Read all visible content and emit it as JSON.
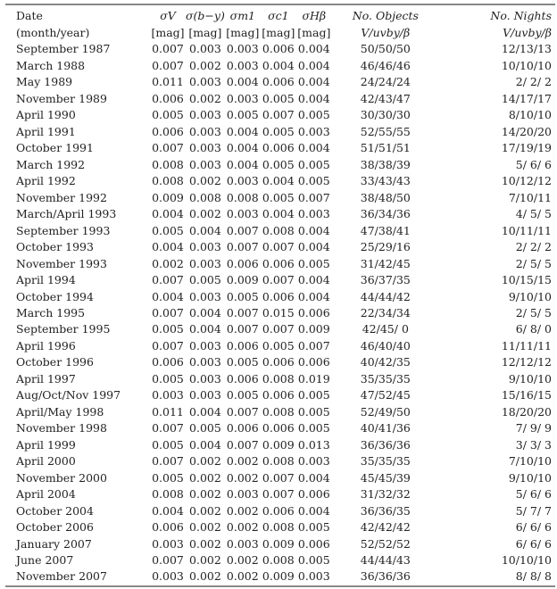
{
  "table": {
    "header_row1": [
      "Date",
      "σV",
      "σ(b−y)",
      "σm1",
      "σc1",
      "σHβ",
      "No. Objects",
      "No. Nights"
    ],
    "header_row2": [
      "(month/year)",
      "[mag]",
      "[mag]",
      "[mag]",
      "[mag]",
      "[mag]",
      "V/uvby/β",
      "V/uvby/β"
    ],
    "rows": [
      [
        "September 1987",
        "0.007",
        "0.003",
        "0.003",
        "0.006",
        "0.004",
        "50/50/50",
        "12/13/13"
      ],
      [
        "March 1988",
        "0.007",
        "0.002",
        "0.003",
        "0.004",
        "0.004",
        "46/46/46",
        "10/10/10"
      ],
      [
        "May 1989",
        "0.011",
        "0.003",
        "0.004",
        "0.006",
        "0.004",
        "24/24/24",
        "2/ 2/ 2"
      ],
      [
        "November 1989",
        "0.006",
        "0.002",
        "0.003",
        "0.005",
        "0.004",
        "42/43/47",
        "14/17/17"
      ],
      [
        "April 1990",
        "0.005",
        "0.003",
        "0.005",
        "0.007",
        "0.005",
        "30/30/30",
        "8/10/10"
      ],
      [
        "April 1991",
        "0.006",
        "0.003",
        "0.004",
        "0.005",
        "0.003",
        "52/55/55",
        "14/20/20"
      ],
      [
        "October 1991",
        "0.007",
        "0.003",
        "0.004",
        "0.006",
        "0.004",
        "51/51/51",
        "17/19/19"
      ],
      [
        "March 1992",
        "0.008",
        "0.003",
        "0.004",
        "0.005",
        "0.005",
        "38/38/39",
        "5/ 6/ 6"
      ],
      [
        "April 1992",
        "0.008",
        "0.002",
        "0.003",
        "0.004",
        "0.005",
        "33/43/43",
        "10/12/12"
      ],
      [
        "November 1992",
        "0.009",
        "0.008",
        "0.008",
        "0.005",
        "0.007",
        "38/48/50",
        "7/10/11"
      ],
      [
        "March/April 1993",
        "0.004",
        "0.002",
        "0.003",
        "0.004",
        "0.003",
        "36/34/36",
        "4/ 5/ 5"
      ],
      [
        "September 1993",
        "0.005",
        "0.004",
        "0.007",
        "0.008",
        "0.004",
        "47/38/41",
        "10/11/11"
      ],
      [
        "October 1993",
        "0.004",
        "0.003",
        "0.007",
        "0.007",
        "0.004",
        "25/29/16",
        "2/ 2/ 2"
      ],
      [
        "November 1993",
        "0.002",
        "0.003",
        "0.006",
        "0.006",
        "0.005",
        "31/42/45",
        "2/ 5/ 5"
      ],
      [
        "April 1994",
        "0.007",
        "0.005",
        "0.009",
        "0.007",
        "0.004",
        "36/37/35",
        "10/15/15"
      ],
      [
        "October 1994",
        "0.004",
        "0.003",
        "0.005",
        "0.006",
        "0.004",
        "44/44/42",
        "9/10/10"
      ],
      [
        "March 1995",
        "0.007",
        "0.004",
        "0.007",
        "0.015",
        "0.006",
        "22/34/34",
        "2/ 5/ 5"
      ],
      [
        "September 1995",
        "0.005",
        "0.004",
        "0.007",
        "0.007",
        "0.009",
        "42/45/ 0",
        "6/ 8/ 0"
      ],
      [
        "April 1996",
        "0.007",
        "0.003",
        "0.006",
        "0.005",
        "0.007",
        "46/40/40",
        "11/11/11"
      ],
      [
        "October 1996",
        "0.006",
        "0.003",
        "0.005",
        "0.006",
        "0.006",
        "40/42/35",
        "12/12/12"
      ],
      [
        "April 1997",
        "0.005",
        "0.003",
        "0.006",
        "0.008",
        "0.019",
        "35/35/35",
        "9/10/10"
      ],
      [
        "Aug/Oct/Nov 1997",
        "0.003",
        "0.003",
        "0.005",
        "0.006",
        "0.005",
        "47/52/45",
        "15/16/15"
      ],
      [
        "April/May 1998",
        "0.011",
        "0.004",
        "0.007",
        "0.008",
        "0.005",
        "52/49/50",
        "18/20/20"
      ],
      [
        "November 1998",
        "0.007",
        "0.005",
        "0.006",
        "0.006",
        "0.005",
        "40/41/36",
        "7/ 9/ 9"
      ],
      [
        "April 1999",
        "0.005",
        "0.004",
        "0.007",
        "0.009",
        "0.013",
        "36/36/36",
        "3/ 3/ 3"
      ],
      [
        "April 2000",
        "0.007",
        "0.002",
        "0.002",
        "0.008",
        "0.003",
        "35/35/35",
        "7/10/10"
      ],
      [
        "November 2000",
        "0.005",
        "0.002",
        "0.002",
        "0.007",
        "0.004",
        "45/45/39",
        "9/10/10"
      ],
      [
        "April 2004",
        "0.008",
        "0.002",
        "0.003",
        "0.007",
        "0.006",
        "31/32/32",
        "5/ 6/ 6"
      ],
      [
        "October 2004",
        "0.004",
        "0.002",
        "0.002",
        "0.006",
        "0.004",
        "36/36/35",
        "5/ 7/ 7"
      ],
      [
        "October 2006",
        "0.006",
        "0.002",
        "0.002",
        "0.008",
        "0.005",
        "42/42/42",
        "6/ 6/ 6"
      ],
      [
        "January 2007",
        "0.003",
        "0.002",
        "0.003",
        "0.009",
        "0.006",
        "52/52/52",
        "6/ 6/ 6"
      ],
      [
        "June 2007",
        "0.007",
        "0.002",
        "0.002",
        "0.008",
        "0.005",
        "44/44/43",
        "10/10/10"
      ],
      [
        "November 2007",
        "0.003",
        "0.002",
        "0.002",
        "0.009",
        "0.003",
        "36/36/36",
        "8/ 8/ 8"
      ]
    ]
  }
}
